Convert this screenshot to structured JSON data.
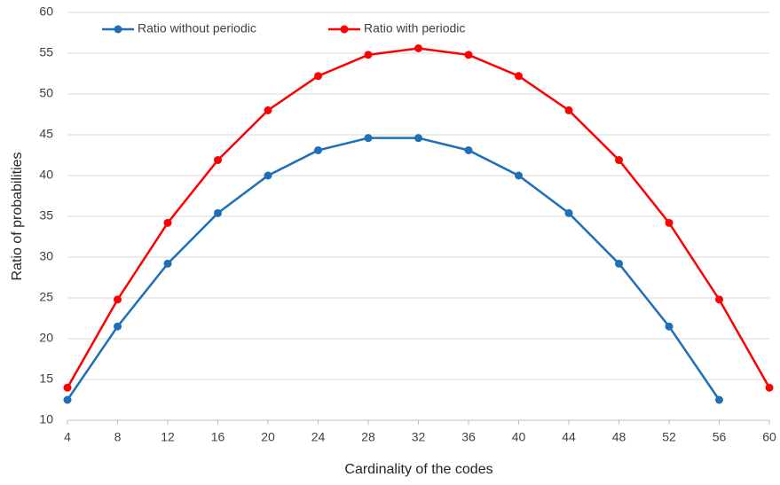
{
  "chart_data": {
    "type": "line",
    "x": [
      4,
      8,
      12,
      16,
      20,
      24,
      28,
      32,
      36,
      40,
      44,
      48,
      52,
      56,
      60
    ],
    "series": [
      {
        "name": "Ratio without periodic",
        "color": "#1f6fb8",
        "values": [
          12.5,
          21.5,
          29.2,
          35.4,
          40.0,
          43.1,
          44.6,
          44.6,
          43.1,
          40.0,
          35.4,
          29.2,
          21.5,
          12.5,
          null
        ]
      },
      {
        "name": "Ratio with periodic",
        "color": "#ff0000",
        "values": [
          14.0,
          24.8,
          34.2,
          41.9,
          48.0,
          52.2,
          54.8,
          55.6,
          54.8,
          52.2,
          48.0,
          41.9,
          34.2,
          24.8,
          14.0
        ]
      }
    ],
    "xlabel": "Cardinality of the codes",
    "ylabel": "Ratio of probabilities",
    "xlim": [
      4,
      60
    ],
    "xticks": [
      4,
      8,
      12,
      16,
      20,
      24,
      28,
      32,
      36,
      40,
      44,
      48,
      52,
      56,
      60
    ],
    "ylim": [
      10,
      60
    ],
    "yticks": [
      10,
      15,
      20,
      25,
      30,
      35,
      40,
      45,
      50,
      55,
      60
    ],
    "grid": true,
    "legend": "top-left"
  }
}
